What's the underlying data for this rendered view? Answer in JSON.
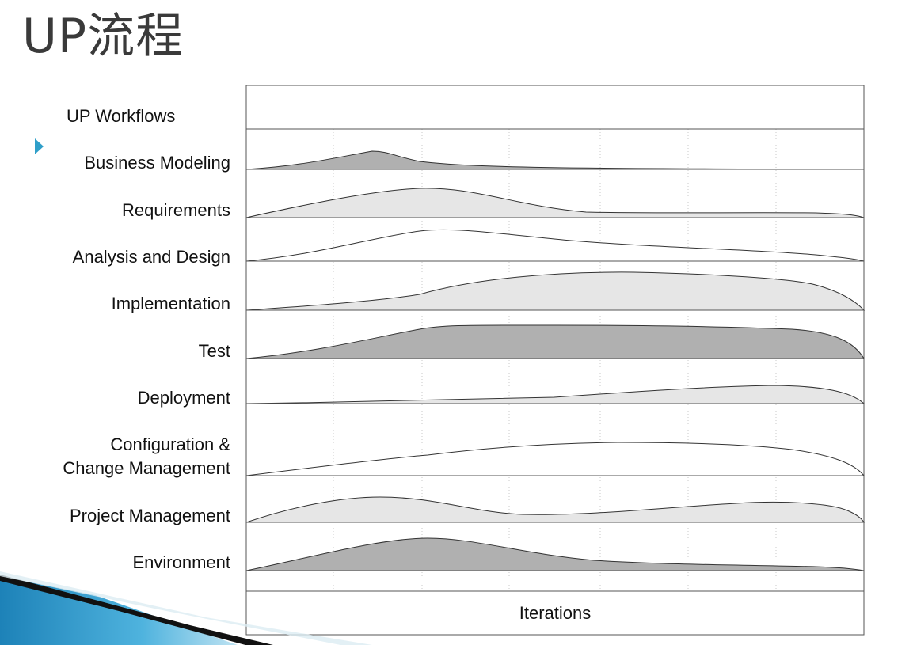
{
  "slide": {
    "title": "UP流程"
  },
  "diagram": {
    "header_label": "UP Workflows",
    "footer_label": "Iterations",
    "workflows": [
      {
        "name": "Business Modeling",
        "shade": "dark"
      },
      {
        "name": "Requirements",
        "shade": "light"
      },
      {
        "name": "Analysis and Design",
        "shade": "white"
      },
      {
        "name": "Implementation",
        "shade": "light"
      },
      {
        "name": "Test",
        "shade": "dark"
      },
      {
        "name": "Deployment",
        "shade": "light"
      },
      {
        "name": "Configuration & Change Management",
        "name_lines": [
          "Configuration &",
          "Change Management"
        ],
        "shade": "white"
      },
      {
        "name": "Project Management",
        "shade": "light"
      },
      {
        "name": "Environment",
        "shade": "dark"
      }
    ]
  },
  "colors": {
    "dark": "#b0b0b0",
    "light": "#e6e6e6",
    "white": "#ffffff",
    "accent": "#2f9fc9"
  },
  "icons": {
    "bullet": "triangle-right-icon"
  }
}
